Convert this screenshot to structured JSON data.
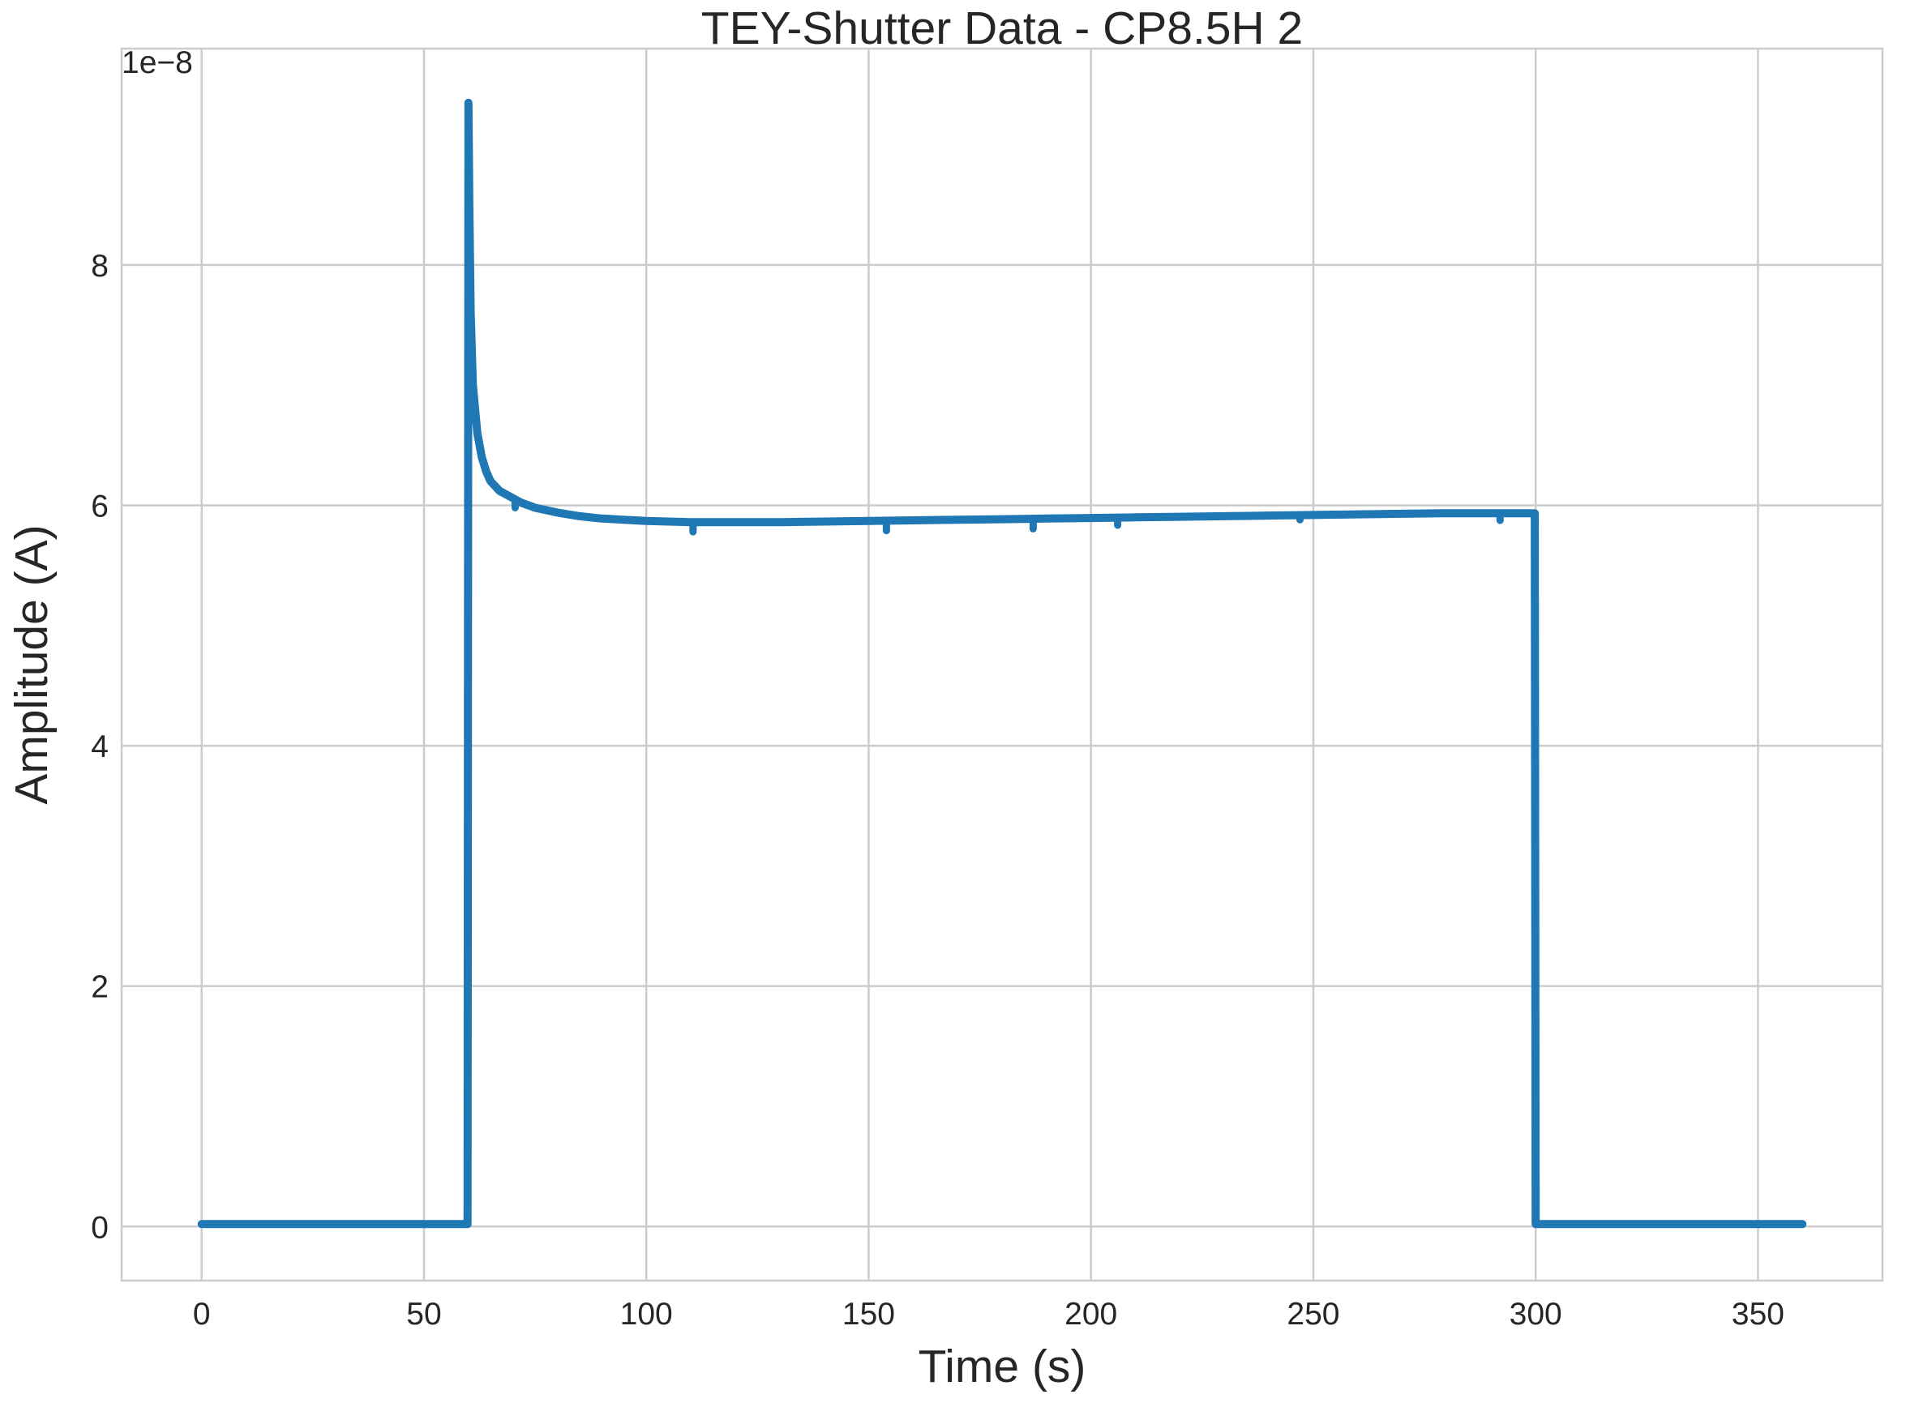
{
  "chart_data": {
    "type": "line",
    "title": "TEY-Shutter Data - CP8.5H 2",
    "xlabel": "Time (s)",
    "ylabel": "Amplitude (A)",
    "y_offset_label": "1e−8",
    "xlim": [
      -18,
      378
    ],
    "ylim": [
      -0.45,
      9.8
    ],
    "x_ticks": [
      0,
      50,
      100,
      150,
      200,
      250,
      300,
      350
    ],
    "x_tick_labels": [
      "0",
      "50",
      "100",
      "150",
      "200",
      "250",
      "300",
      "350"
    ],
    "y_ticks": [
      0,
      2,
      4,
      6,
      8
    ],
    "y_tick_labels": [
      "0",
      "2",
      "4",
      "6",
      "8"
    ],
    "grid": true,
    "color": "#1f77b4",
    "series": [
      {
        "x": [
          0,
          20,
          40,
          59.8,
          60.0,
          60.2,
          60.5,
          61,
          62,
          63,
          64,
          65,
          67,
          70,
          72,
          75,
          80,
          85,
          90,
          100,
          110,
          120,
          130,
          140,
          150,
          160,
          170,
          180,
          190,
          200,
          210,
          220,
          230,
          240,
          250,
          260,
          270,
          280,
          290,
          299.8,
          300.0,
          300.2,
          320,
          340,
          360
        ],
        "y": [
          0.02,
          0.02,
          0.02,
          0.02,
          9.35,
          8.5,
          7.6,
          7.0,
          6.6,
          6.4,
          6.28,
          6.2,
          6.12,
          6.06,
          6.02,
          5.98,
          5.94,
          5.91,
          5.89,
          5.87,
          5.86,
          5.86,
          5.86,
          5.865,
          5.87,
          5.875,
          5.88,
          5.885,
          5.89,
          5.895,
          5.9,
          5.905,
          5.91,
          5.915,
          5.92,
          5.925,
          5.93,
          5.935,
          5.935,
          5.935,
          0.02,
          0.02,
          0.02,
          0.02,
          0.02
        ]
      }
    ],
    "dips": [
      {
        "x": 70.5,
        "y": 6.04,
        "depth": 0.06
      },
      {
        "x": 110.5,
        "y": 5.86,
        "depth": 0.08
      },
      {
        "x": 154.0,
        "y": 5.87,
        "depth": 0.08
      },
      {
        "x": 187.0,
        "y": 5.885,
        "depth": 0.08
      },
      {
        "x": 206.0,
        "y": 5.895,
        "depth": 0.06
      },
      {
        "x": 247.0,
        "y": 5.92,
        "depth": 0.04
      },
      {
        "x": 292.0,
        "y": 5.935,
        "depth": 0.06
      }
    ]
  }
}
